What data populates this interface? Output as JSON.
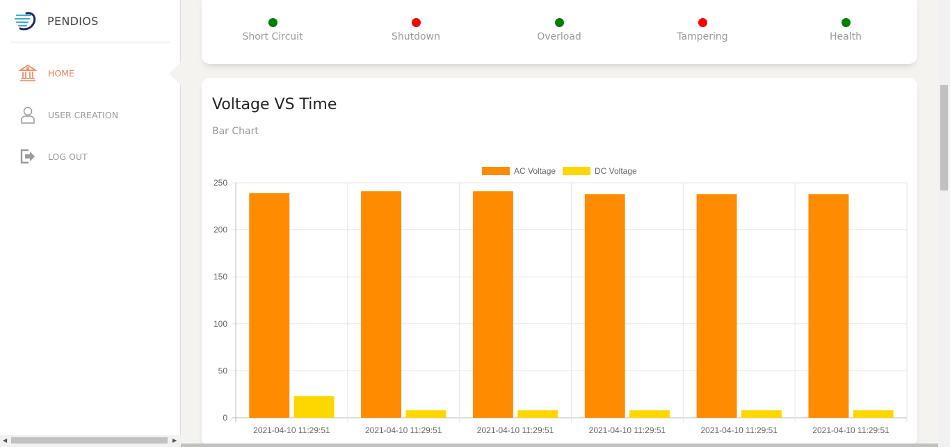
{
  "app": {
    "name": "PENDIOS"
  },
  "sidebar": {
    "items": [
      {
        "label": "HOME",
        "icon": "bank-icon",
        "active": true
      },
      {
        "label": "USER CREATION",
        "icon": "user-icon",
        "active": false
      },
      {
        "label": "LOG OUT",
        "icon": "logout-icon",
        "active": false
      }
    ]
  },
  "status": {
    "items": [
      {
        "label": "Short Circuit",
        "state": "ok",
        "color": "#008000"
      },
      {
        "label": "Shutdown",
        "state": "alert",
        "color": "#ff0000"
      },
      {
        "label": "Overload",
        "state": "ok",
        "color": "#008000"
      },
      {
        "label": "Tampering",
        "state": "alert",
        "color": "#ff0000"
      },
      {
        "label": "Health",
        "state": "ok",
        "color": "#008000"
      }
    ]
  },
  "chart_card": {
    "title": "Voltage VS Time",
    "subtitle": "Bar Chart"
  },
  "chart_data": {
    "type": "bar",
    "categories": [
      "2021-04-10 11:29:51",
      "2021-04-10 11:29:51",
      "2021-04-10 11:29:51",
      "2021-04-10 11:29:51",
      "2021-04-10 11:29:51",
      "2021-04-10 11:29:51"
    ],
    "series": [
      {
        "name": "AC Voltage",
        "color": "#ff8c00",
        "values": [
          239,
          241,
          241,
          238,
          238,
          238
        ]
      },
      {
        "name": "DC Voltage",
        "color": "#ffd700",
        "values": [
          23,
          8,
          8,
          8,
          8,
          8
        ]
      }
    ],
    "yticks": [
      0,
      50,
      100,
      150,
      200,
      250
    ],
    "ylim": [
      0,
      250
    ],
    "grid": true,
    "legend": "top-center"
  }
}
